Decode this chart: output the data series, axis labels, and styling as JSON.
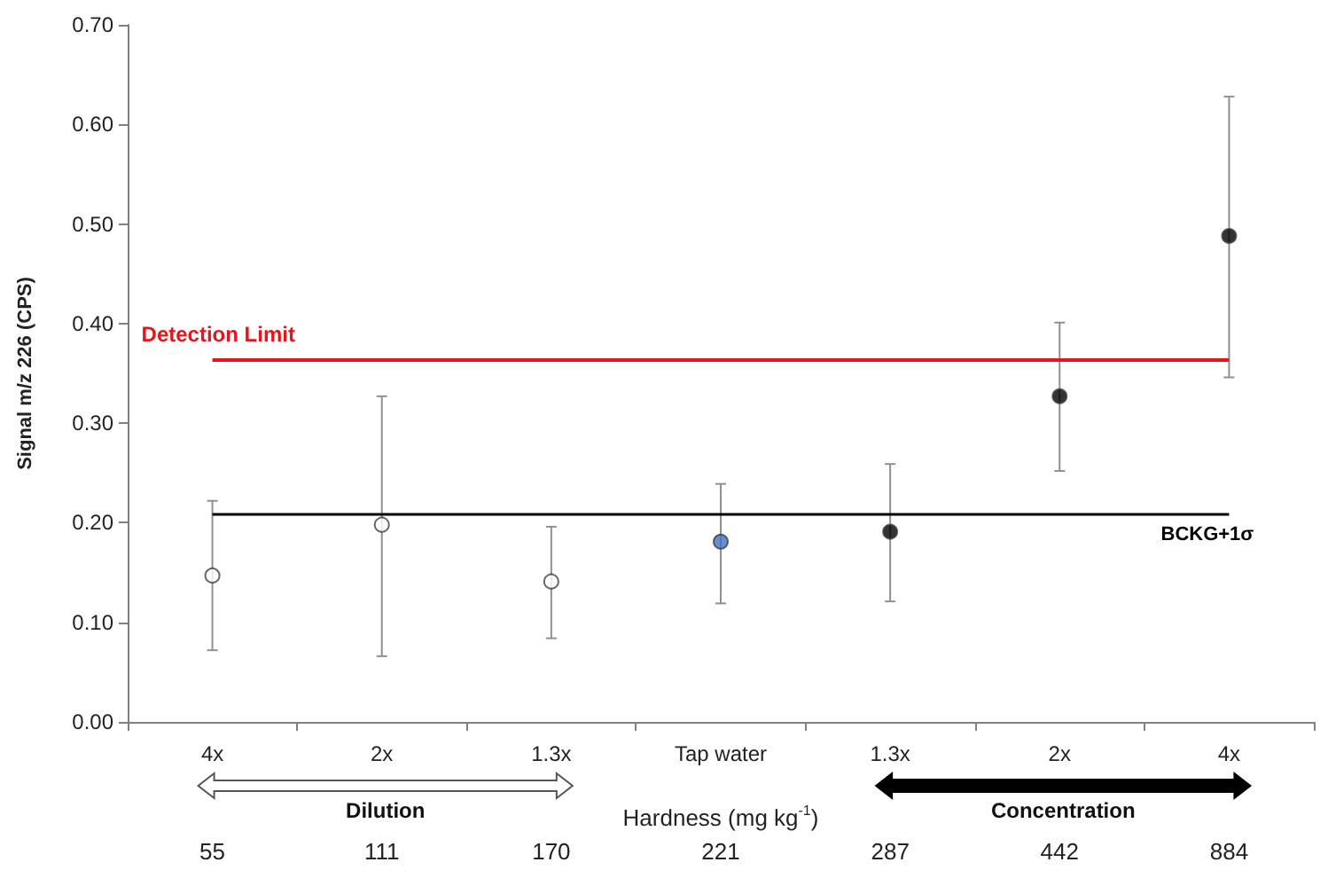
{
  "chart_data": {
    "type": "scatter",
    "ylabel": "Signal m/z 226 (CPS)",
    "xlabel": "Hardness (mg kg$^{-1}$)",
    "categories": [
      "4x",
      "2x",
      "1.3x",
      "Tap water",
      "1.3x",
      "2x",
      "4x"
    ],
    "values": [
      0.147,
      0.198,
      0.141,
      0.181,
      0.191,
      0.327,
      0.488
    ],
    "colors": [
      "#ffffff",
      "#ffffff",
      "#ffffff",
      "#4472c4",
      "#000000",
      "#000000",
      "#000000"
    ],
    "errors": [
      [
        0.072,
        0.222
      ],
      [
        0.066,
        0.327
      ],
      [
        0.084,
        0.196
      ],
      [
        0.119,
        0.239
      ],
      [
        0.121,
        0.259
      ],
      [
        0.252,
        0.401
      ],
      [
        0.346,
        0.628
      ]
    ],
    "ylim": [
      0,
      0.7
    ],
    "yticks": [
      {
        "value": 0,
        "label": "0.00"
      },
      {
        "value": 0.1,
        "label": "0.10"
      },
      {
        "value": 0.2,
        "label": "0.20"
      },
      {
        "value": 0.3,
        "label": "0.30"
      },
      {
        "value": 0.4,
        "label": "0.40"
      },
      {
        "value": 0.5,
        "label": "0.50"
      },
      {
        "value": 0.6,
        "label": "0.60"
      },
      {
        "value": 0.7,
        "label": "0.70"
      }
    ],
    "ref_lines": [
      {
        "axis": "y",
        "value": 0.364,
        "label": "Detection Limit",
        "color": "#e8141c"
      },
      {
        "axis": "y",
        "value": 0.208,
        "label": "BCKG+1σ",
        "color": "#000000"
      }
    ],
    "annotations": [
      "55",
      "111",
      "170",
      "221",
      "287",
      "442",
      "884",
      "Dilution",
      "Concentration"
    ],
    "grid": false,
    "marker": "circle"
  }
}
